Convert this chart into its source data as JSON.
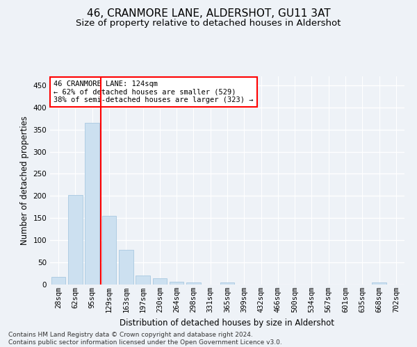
{
  "title": "46, CRANMORE LANE, ALDERSHOT, GU11 3AT",
  "subtitle": "Size of property relative to detached houses in Aldershot",
  "xlabel": "Distribution of detached houses by size in Aldershot",
  "ylabel": "Number of detached properties",
  "bar_labels": [
    "28sqm",
    "62sqm",
    "95sqm",
    "129sqm",
    "163sqm",
    "197sqm",
    "230sqm",
    "264sqm",
    "298sqm",
    "331sqm",
    "365sqm",
    "399sqm",
    "432sqm",
    "466sqm",
    "500sqm",
    "534sqm",
    "567sqm",
    "601sqm",
    "635sqm",
    "668sqm",
    "702sqm"
  ],
  "bar_values": [
    18,
    202,
    365,
    155,
    78,
    20,
    14,
    7,
    5,
    0,
    4,
    0,
    0,
    0,
    0,
    0,
    0,
    0,
    0,
    4,
    0
  ],
  "bar_color": "#cce0f0",
  "bar_edge_color": "#a8c8e0",
  "property_line_color": "red",
  "property_label": "46 CRANMORE LANE: 124sqm",
  "annotation_line1": "← 62% of detached houses are smaller (529)",
  "annotation_line2": "38% of semi-detached houses are larger (323) →",
  "annotation_box_color": "white",
  "annotation_box_edge_color": "red",
  "ylim": [
    0,
    470
  ],
  "yticks": [
    0,
    50,
    100,
    150,
    200,
    250,
    300,
    350,
    400,
    450
  ],
  "footnote": "Contains HM Land Registry data © Crown copyright and database right 2024.\nContains public sector information licensed under the Open Government Licence v3.0.",
  "title_fontsize": 11,
  "subtitle_fontsize": 9.5,
  "axis_label_fontsize": 8.5,
  "tick_fontsize": 7.5,
  "annotation_fontsize": 7.5,
  "footnote_fontsize": 6.5,
  "background_color": "#eef2f7",
  "grid_color": "white"
}
